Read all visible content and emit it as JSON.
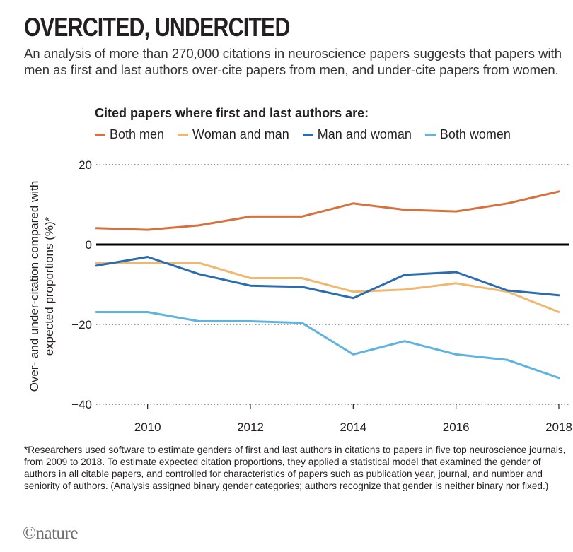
{
  "headline": "OVERCITED, UNDERCITED",
  "subtitle": "An analysis of more than 270,000 citations in neuroscience papers suggests that papers with men as first and last authors over-cite papers from men, and under-cite papers from women.",
  "footnote": "*Researchers used software to estimate genders of first and last authors in citations to papers in five top neuroscience journals, from 2009 to 2018. To estimate expected citation proportions, they applied a statistical model that examined the gender of authors in all citable papers, and controlled for characteristics of papers such as publication year, journal, and number and seniority of authors. (Analysis assigned binary gender categories; authors recognize that gender is neither binary nor fixed.)",
  "logo_text": "©nature",
  "colors": {
    "both_men": "#d8703e",
    "woman_and_man": "#f0b86f",
    "man_and_woman": "#2b6cb0",
    "both_women": "#5fb3e0"
  },
  "chart_data": {
    "type": "line",
    "title": "OVERCITED, UNDERCITED",
    "legend_title": "Cited papers where first and last authors are:",
    "xlabel": "",
    "ylabel": "Over- and under-citation compared with expected proportions (%)*",
    "x": [
      2009,
      2010,
      2011,
      2012,
      2013,
      2014,
      2015,
      2016,
      2017,
      2018
    ],
    "xticks": [
      2010,
      2012,
      2014,
      2016,
      2018
    ],
    "xtick_labels": [
      "2010",
      "2012",
      "2014",
      "2016",
      "2018"
    ],
    "xlim": [
      2009,
      2018
    ],
    "yticks": [
      20,
      0,
      -20,
      -40
    ],
    "ytick_labels": [
      "20",
      "0",
      "−20",
      "−40"
    ],
    "ylim": [
      -40,
      20
    ],
    "grid": "dotted horizontal at 20, -20, -40; solid zero line",
    "series": [
      {
        "name": "Both men",
        "color": "#d8703e",
        "values": [
          4.1,
          3.7,
          4.8,
          7.0,
          7.0,
          10.3,
          8.7,
          8.3,
          10.3,
          13.3
        ]
      },
      {
        "name": "Woman and man",
        "color": "#f0b86f",
        "values": [
          -4.6,
          -4.6,
          -4.6,
          -8.4,
          -8.4,
          -11.8,
          -11.3,
          -9.7,
          -11.8,
          -16.9
        ]
      },
      {
        "name": "Man and woman",
        "color": "#2b6cb0",
        "values": [
          -5.3,
          -3.1,
          -7.4,
          -10.3,
          -10.6,
          -13.4,
          -7.6,
          -6.9,
          -11.5,
          -12.7
        ]
      },
      {
        "name": "Both women",
        "color": "#5fb3e0",
        "values": [
          -16.9,
          -16.9,
          -19.2,
          -19.2,
          -19.6,
          -27.5,
          -24.2,
          -27.5,
          -28.9,
          -33.4
        ]
      }
    ]
  }
}
